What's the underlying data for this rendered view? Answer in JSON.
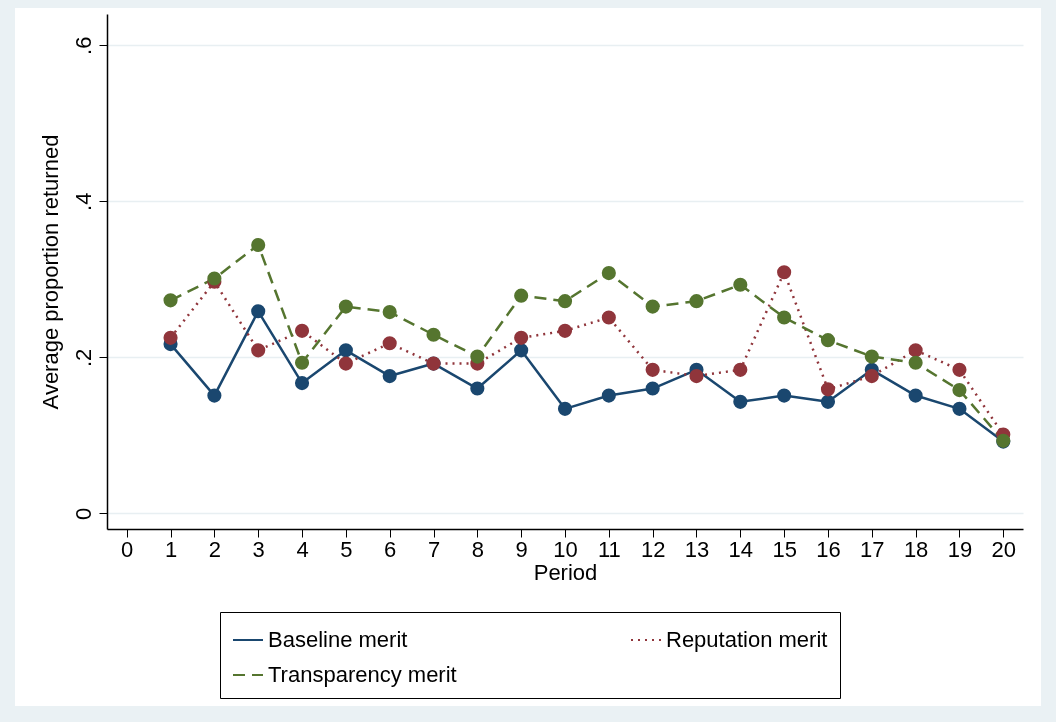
{
  "chart_data": {
    "type": "line",
    "xlabel": "Period",
    "ylabel": "Average proportion returned",
    "x": [
      1,
      2,
      3,
      4,
      5,
      6,
      7,
      8,
      9,
      10,
      11,
      12,
      13,
      14,
      15,
      16,
      17,
      18,
      19,
      20
    ],
    "series": [
      {
        "name": "Baseline merit",
        "color": "#1a476f",
        "line_style": "solid",
        "values": [
          0.217,
          0.151,
          0.259,
          0.167,
          0.209,
          0.176,
          0.192,
          0.16,
          0.209,
          0.134,
          0.151,
          0.16,
          0.184,
          0.143,
          0.151,
          0.143,
          0.184,
          0.151,
          0.134,
          0.092
        ]
      },
      {
        "name": "Reputation merit",
        "color": "#90353b",
        "line_style": "dotted",
        "values": [
          0.225,
          0.297,
          0.209,
          0.234,
          0.192,
          0.218,
          0.192,
          0.192,
          0.225,
          0.234,
          0.251,
          0.184,
          0.176,
          0.184,
          0.309,
          0.159,
          0.176,
          0.209,
          0.184,
          0.101
        ]
      },
      {
        "name": "Transparency merit",
        "color": "#55752f",
        "line_style": "dashed",
        "values": [
          0.273,
          0.301,
          0.344,
          0.193,
          0.265,
          0.258,
          0.229,
          0.201,
          0.279,
          0.272,
          0.308,
          0.265,
          0.272,
          0.293,
          0.251,
          0.222,
          0.201,
          0.193,
          0.158,
          0.093
        ]
      }
    ],
    "xlim": [
      -0.45,
      20.45
    ],
    "xticks": [
      0,
      1,
      2,
      3,
      4,
      5,
      6,
      7,
      8,
      9,
      10,
      11,
      12,
      13,
      14,
      15,
      16,
      17,
      18,
      19,
      20
    ],
    "ylim": [
      -0.02,
      0.64
    ],
    "yticks": [
      0,
      {
        "value": 0.2,
        "label": ".2"
      },
      {
        "value": 0.4,
        "label": ".4"
      },
      {
        "value": 0.6,
        "label": ".6"
      }
    ],
    "grid": "y",
    "legend": "bottom",
    "marker": "circle"
  }
}
